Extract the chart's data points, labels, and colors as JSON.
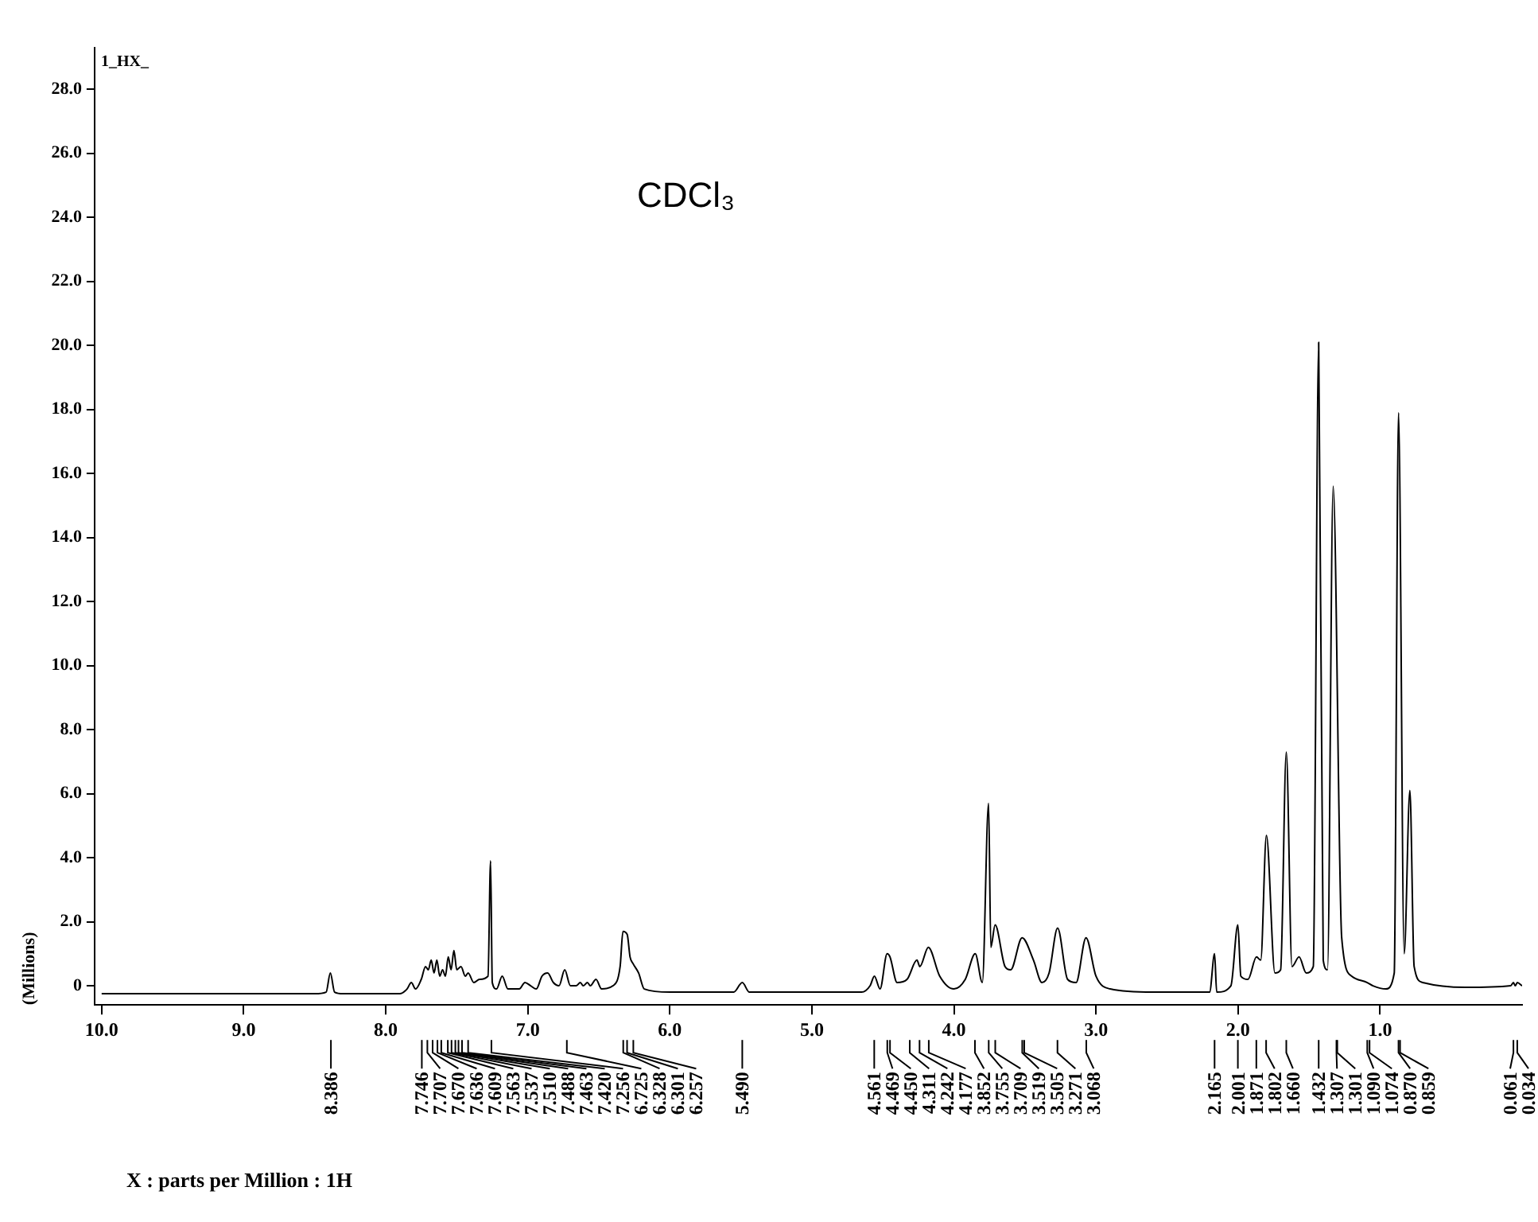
{
  "chart_data": {
    "type": "line",
    "title": "CDCl₃",
    "ylabel": "(Millions)",
    "color": "#000000",
    "marker": "none",
    "line_style": "solid",
    "grid": false,
    "legend": false,
    "x": [
      10.0,
      8.5,
      8.42,
      8.39,
      8.36,
      8.3,
      7.9,
      7.85,
      7.82,
      7.79,
      7.75,
      7.72,
      7.7,
      7.68,
      7.66,
      7.64,
      7.62,
      7.6,
      7.58,
      7.56,
      7.54,
      7.52,
      7.5,
      7.47,
      7.44,
      7.42,
      7.38,
      7.34,
      7.28,
      7.262,
      7.25,
      7.22,
      7.18,
      7.14,
      7.06,
      7.02,
      6.98,
      6.94,
      6.9,
      6.86,
      6.82,
      6.78,
      6.74,
      6.7,
      6.66,
      6.63,
      6.61,
      6.58,
      6.56,
      6.52,
      6.48,
      6.4,
      6.35,
      6.33,
      6.3,
      6.28,
      6.26,
      6.22,
      6.18,
      6.0,
      5.55,
      5.49,
      5.44,
      4.65,
      4.59,
      4.56,
      4.52,
      4.47,
      4.45,
      4.4,
      4.33,
      4.26,
      4.24,
      4.18,
      4.1,
      4.0,
      3.92,
      3.85,
      3.8,
      3.756,
      3.74,
      3.71,
      3.64,
      3.6,
      3.52,
      3.44,
      3.38,
      3.33,
      3.27,
      3.2,
      3.14,
      3.07,
      3.0,
      2.9,
      2.6,
      2.2,
      2.165,
      2.15,
      2.05,
      2.001,
      1.98,
      1.93,
      1.87,
      1.84,
      1.8,
      1.74,
      1.7,
      1.66,
      1.62,
      1.57,
      1.52,
      1.47,
      1.432,
      1.4,
      1.37,
      1.33,
      1.27,
      1.2,
      1.09,
      1.05,
      0.96,
      0.9,
      0.87,
      0.83,
      0.79,
      0.76,
      0.7,
      0.4,
      0.08,
      0.061,
      0.048,
      0.034,
      0.0
    ],
    "values": [
      -0.25,
      -0.25,
      -0.2,
      0.4,
      -0.2,
      -0.25,
      -0.25,
      -0.1,
      0.1,
      -0.1,
      0.2,
      0.6,
      0.5,
      0.8,
      0.4,
      0.8,
      0.3,
      0.5,
      0.3,
      0.9,
      0.5,
      1.1,
      0.5,
      0.6,
      0.3,
      0.4,
      0.1,
      0.2,
      0.3,
      3.9,
      0.1,
      -0.1,
      0.3,
      -0.1,
      -0.1,
      0.1,
      0.0,
      -0.1,
      0.3,
      0.4,
      0.1,
      0.0,
      0.5,
      0.0,
      0.0,
      0.1,
      0.0,
      0.1,
      0.0,
      0.2,
      -0.1,
      0.0,
      0.6,
      1.7,
      1.6,
      0.9,
      0.7,
      0.4,
      -0.1,
      -0.2,
      -0.2,
      0.1,
      -0.2,
      -0.2,
      0.0,
      0.3,
      -0.1,
      1.0,
      0.9,
      0.1,
      0.2,
      0.8,
      0.6,
      1.2,
      0.3,
      -0.1,
      0.2,
      1.0,
      0.1,
      5.7,
      1.2,
      1.9,
      0.6,
      0.5,
      1.5,
      0.8,
      0.1,
      0.4,
      1.8,
      0.2,
      0.1,
      1.5,
      0.3,
      -0.1,
      -0.2,
      -0.2,
      1.0,
      -0.2,
      0.0,
      1.9,
      0.3,
      0.2,
      0.9,
      0.8,
      4.7,
      0.4,
      0.5,
      7.3,
      0.6,
      0.9,
      0.4,
      0.6,
      20.1,
      0.8,
      0.5,
      15.6,
      1.5,
      0.3,
      0.1,
      0.0,
      -0.1,
      0.4,
      17.9,
      1.0,
      6.1,
      0.6,
      0.1,
      -0.05,
      0.0,
      0.1,
      0.0,
      0.1,
      0.0
    ],
    "xlim": [
      10.05,
      0.0
    ],
    "xticks": [
      {
        "value": 10,
        "label": "10.0"
      },
      {
        "value": 9,
        "label": "9.0"
      },
      {
        "value": 8,
        "label": "8.0"
      },
      {
        "value": 7,
        "label": "7.0"
      },
      {
        "value": 6,
        "label": "6.0"
      },
      {
        "value": 5,
        "label": "5.0"
      },
      {
        "value": 4,
        "label": "4.0"
      },
      {
        "value": 3,
        "label": "3.0"
      },
      {
        "value": 2,
        "label": "2.0"
      },
      {
        "value": 1,
        "label": "1.0"
      }
    ],
    "ylim": [
      -0.6,
      29.3
    ],
    "yticks": [
      0,
      {
        "value": 2,
        "label": "2.0"
      },
      {
        "value": 4,
        "label": "4.0"
      },
      {
        "value": 6,
        "label": "6.0"
      },
      {
        "value": 8,
        "label": "8.0"
      },
      {
        "value": 10,
        "label": "10.0"
      },
      {
        "value": 12,
        "label": "12.0"
      },
      {
        "value": 14,
        "label": "14.0"
      },
      {
        "value": 16,
        "label": "16.0"
      },
      {
        "value": 18,
        "label": "18.0"
      },
      {
        "value": 20,
        "label": "20.0"
      },
      {
        "value": 22,
        "label": "22.0"
      },
      {
        "value": 24,
        "label": "24.0"
      },
      {
        "value": 26,
        "label": "26.0"
      },
      {
        "value": 28,
        "label": "28.0"
      }
    ],
    "annotations": [
      "1_HX_",
      "X : parts per Million : 1H",
      {
        "text": "8.386",
        "x": 8.386
      },
      {
        "text": "7.746",
        "x": 7.746
      },
      {
        "text": "7.707",
        "x": 7.707
      },
      {
        "text": "7.670",
        "x": 7.67
      },
      {
        "text": "7.636",
        "x": 7.636
      },
      {
        "text": "7.609",
        "x": 7.609
      },
      {
        "text": "7.563",
        "x": 7.563
      },
      {
        "text": "7.537",
        "x": 7.537
      },
      {
        "text": "7.510",
        "x": 7.51
      },
      {
        "text": "7.488",
        "x": 7.488
      },
      {
        "text": "7.463",
        "x": 7.463
      },
      {
        "text": "7.420",
        "x": 7.42
      },
      {
        "text": "7.256",
        "x": 7.256
      },
      {
        "text": "6.725",
        "x": 6.725
      },
      {
        "text": "6.328",
        "x": 6.328
      },
      {
        "text": "6.301",
        "x": 6.301
      },
      {
        "text": "6.257",
        "x": 6.257
      },
      {
        "text": "5.490",
        "x": 5.49
      },
      {
        "text": "4.561",
        "x": 4.561
      },
      {
        "text": "4.469",
        "x": 4.469
      },
      {
        "text": "4.450",
        "x": 4.45
      },
      {
        "text": "4.311",
        "x": 4.311
      },
      {
        "text": "4.242",
        "x": 4.242
      },
      {
        "text": "4.177",
        "x": 4.177
      },
      {
        "text": "3.852",
        "x": 3.852
      },
      {
        "text": "3.755",
        "x": 3.755
      },
      {
        "text": "3.709",
        "x": 3.709
      },
      {
        "text": "3.519",
        "x": 3.519
      },
      {
        "text": "3.505",
        "x": 3.505
      },
      {
        "text": "3.271",
        "x": 3.271
      },
      {
        "text": "3.068",
        "x": 3.068
      },
      {
        "text": "2.165",
        "x": 2.165
      },
      {
        "text": "2.001",
        "x": 2.001
      },
      {
        "text": "1.871",
        "x": 1.871
      },
      {
        "text": "1.802",
        "x": 1.802
      },
      {
        "text": "1.660",
        "x": 1.66
      },
      {
        "text": "1.432",
        "x": 1.432
      },
      {
        "text": "1.307",
        "x": 1.307
      },
      {
        "text": "1.301",
        "x": 1.301
      },
      {
        "text": "1.090",
        "x": 1.09
      },
      {
        "text": "1.074",
        "x": 1.074
      },
      {
        "text": "0.870",
        "x": 0.87
      },
      {
        "text": "0.859",
        "x": 0.859
      },
      {
        "text": "0.061",
        "x": 0.061
      },
      {
        "text": "0.034",
        "x": 0.034
      }
    ]
  }
}
